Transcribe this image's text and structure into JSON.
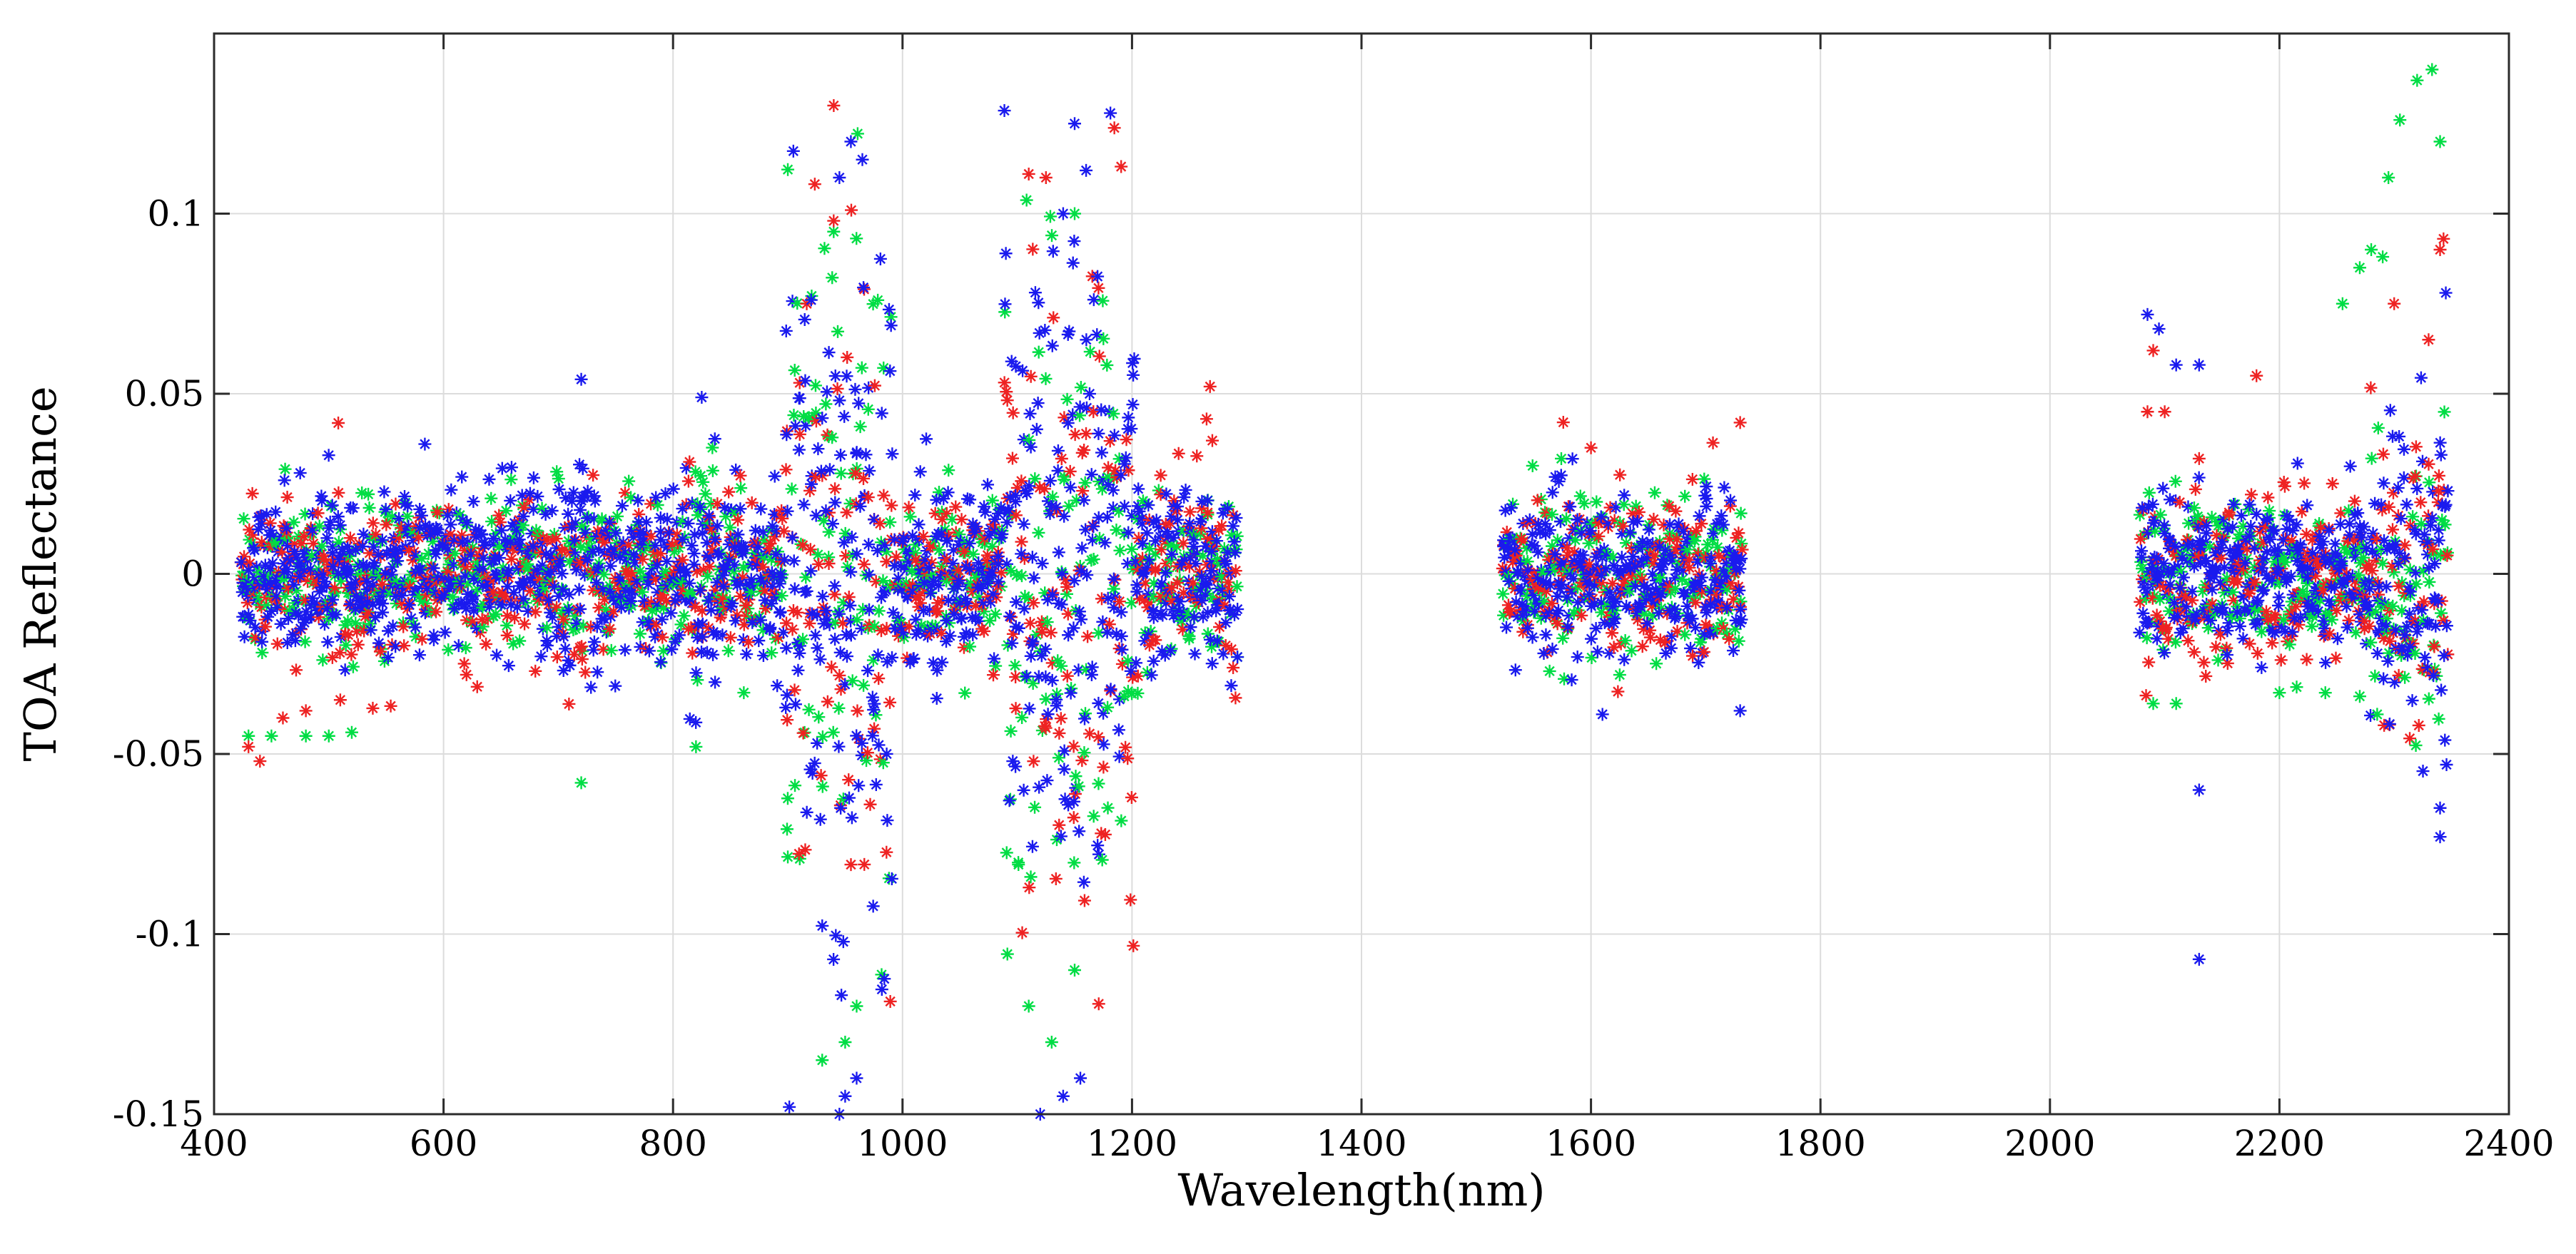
{
  "chart_data": {
    "type": "scatter",
    "title": "",
    "xlabel": "Wavelength(nm)",
    "ylabel": "TOA Reflectance",
    "xlim": [
      400,
      2400
    ],
    "ylim": [
      -0.15,
      0.15
    ],
    "xticks": [
      400,
      600,
      800,
      1000,
      1200,
      1400,
      1600,
      1800,
      2000,
      2200,
      2400
    ],
    "xtick_labels": [
      "400",
      "600",
      "800",
      "1000",
      "1200",
      "1400",
      "1600",
      "1800",
      "2000",
      "2200",
      "2400"
    ],
    "yticks": [
      -0.15,
      -0.1,
      -0.05,
      0,
      0.05,
      0.1
    ],
    "ytick_labels": [
      "-0.15",
      "-0.1",
      "-0.05",
      "0",
      "0.05",
      "0.1"
    ],
    "grid": true,
    "marker": "*",
    "wavelength_ranges_nm": [
      [
        425,
        1290
      ],
      [
        1525,
        1730
      ],
      [
        2080,
        2345
      ]
    ],
    "series": [
      {
        "name": "green",
        "color": "#00dd44",
        "points": [
          [
            430,
            -0.045
          ],
          [
            450,
            -0.045
          ],
          [
            480,
            -0.045
          ],
          [
            500,
            -0.045
          ],
          [
            520,
            -0.044
          ],
          [
            720,
            -0.058
          ],
          [
            820,
            -0.048
          ],
          [
            930,
            -0.135
          ],
          [
            950,
            -0.13
          ],
          [
            960,
            -0.12
          ],
          [
            1110,
            -0.12
          ],
          [
            1130,
            -0.13
          ],
          [
            1150,
            -0.11
          ],
          [
            940,
            0.095
          ],
          [
            1150,
            0.1
          ],
          [
            2090,
            -0.036
          ],
          [
            2110,
            -0.036
          ],
          [
            2200,
            -0.033
          ],
          [
            2240,
            -0.033
          ],
          [
            2270,
            -0.034
          ],
          [
            2280,
            0.09
          ],
          [
            2295,
            0.11
          ],
          [
            2305,
            0.126
          ],
          [
            2320,
            0.137
          ],
          [
            2333,
            0.14
          ],
          [
            2340,
            0.12
          ],
          [
            2255,
            0.075
          ],
          [
            2270,
            0.085
          ],
          [
            2290,
            0.088
          ]
        ]
      },
      {
        "name": "red",
        "color": "#ee2222",
        "points": [
          [
            430,
            -0.048
          ],
          [
            440,
            -0.052
          ],
          [
            460,
            -0.04
          ],
          [
            480,
            -0.038
          ],
          [
            510,
            -0.035
          ],
          [
            620,
            -0.028
          ],
          [
            680,
            -0.027
          ],
          [
            940,
            0.098
          ],
          [
            1110,
            0.111
          ],
          [
            1125,
            0.11
          ],
          [
            1268,
            0.052
          ],
          [
            1270,
            0.037
          ],
          [
            1265,
            0.043
          ],
          [
            1600,
            0.035
          ],
          [
            1730,
            0.042
          ],
          [
            2090,
            0.062
          ],
          [
            2085,
            0.045
          ],
          [
            2100,
            0.045
          ],
          [
            2300,
            0.075
          ],
          [
            2330,
            0.065
          ],
          [
            2343,
            0.093
          ],
          [
            2130,
            0.032
          ],
          [
            2180,
            0.055
          ],
          [
            2340,
            0.09
          ]
        ]
      },
      {
        "name": "blue",
        "color": "#1a1aee",
        "points": [
          [
            955,
            0.12
          ],
          [
            965,
            0.115
          ],
          [
            945,
            0.11
          ],
          [
            1150,
            0.125
          ],
          [
            1160,
            0.112
          ],
          [
            1140,
            0.1
          ],
          [
            945,
            -0.15
          ],
          [
            950,
            -0.145
          ],
          [
            960,
            -0.14
          ],
          [
            1120,
            -0.15
          ],
          [
            1140,
            -0.145
          ],
          [
            1155,
            -0.14
          ],
          [
            2085,
            0.072
          ],
          [
            2095,
            0.068
          ],
          [
            2130,
            -0.107
          ],
          [
            2130,
            -0.06
          ],
          [
            1610,
            -0.039
          ],
          [
            2340,
            -0.073
          ],
          [
            2340,
            -0.065
          ],
          [
            2345,
            0.078
          ],
          [
            2130,
            0.058
          ],
          [
            2110,
            0.058
          ],
          [
            720,
            0.054
          ],
          [
            825,
            0.049
          ],
          [
            1730,
            -0.038
          ]
        ]
      }
    ]
  }
}
